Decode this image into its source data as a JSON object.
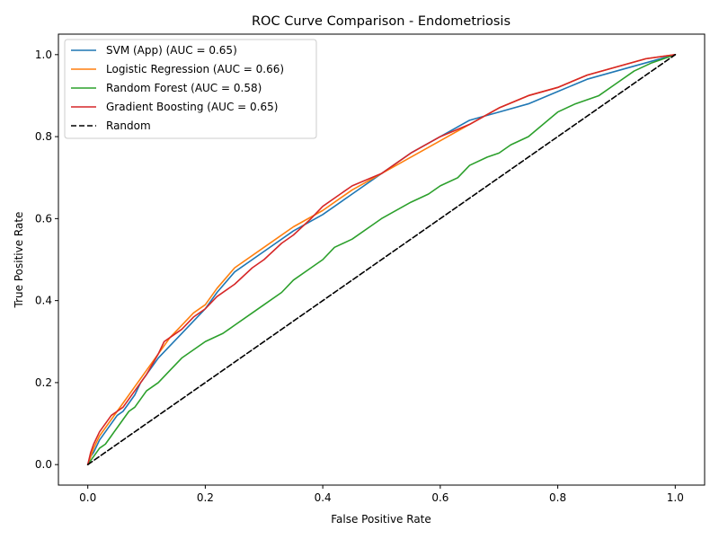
{
  "chart_data": {
    "type": "line",
    "title": "ROC Curve Comparison - Endometriosis",
    "xlabel": "False Positive Rate",
    "ylabel": "True Positive Rate",
    "xlim": [
      -0.05,
      1.05
    ],
    "ylim": [
      -0.05,
      1.05
    ],
    "xticks": [
      0.0,
      0.2,
      0.4,
      0.6,
      0.8,
      1.0
    ],
    "yticks": [
      0.0,
      0.2,
      0.4,
      0.6,
      0.8,
      1.0
    ],
    "xtick_labels": [
      "0.0",
      "0.2",
      "0.4",
      "0.6",
      "0.8",
      "1.0"
    ],
    "ytick_labels": [
      "0.0",
      "0.2",
      "0.4",
      "0.6",
      "0.8",
      "1.0"
    ],
    "grid": false,
    "legend_position": "upper-left",
    "series": [
      {
        "name": "SVM (App) (AUC = 0.65)",
        "color": "#1f77b4",
        "style": "solid",
        "x": [
          0.0,
          0.005,
          0.01,
          0.02,
          0.03,
          0.04,
          0.05,
          0.06,
          0.07,
          0.08,
          0.09,
          0.1,
          0.12,
          0.14,
          0.16,
          0.18,
          0.2,
          0.22,
          0.25,
          0.3,
          0.35,
          0.4,
          0.45,
          0.5,
          0.55,
          0.6,
          0.65,
          0.7,
          0.75,
          0.8,
          0.85,
          0.9,
          0.95,
          1.0
        ],
        "y": [
          0.0,
          0.02,
          0.03,
          0.06,
          0.08,
          0.1,
          0.12,
          0.13,
          0.15,
          0.17,
          0.2,
          0.22,
          0.26,
          0.29,
          0.32,
          0.35,
          0.38,
          0.42,
          0.47,
          0.52,
          0.57,
          0.61,
          0.66,
          0.71,
          0.76,
          0.8,
          0.84,
          0.86,
          0.88,
          0.91,
          0.94,
          0.96,
          0.98,
          1.0
        ]
      },
      {
        "name": "Logistic Regression (AUC = 0.66)",
        "color": "#ff7f0e",
        "style": "solid",
        "x": [
          0.0,
          0.005,
          0.01,
          0.02,
          0.03,
          0.04,
          0.05,
          0.06,
          0.07,
          0.08,
          0.09,
          0.1,
          0.12,
          0.14,
          0.16,
          0.18,
          0.2,
          0.22,
          0.25,
          0.3,
          0.35,
          0.4,
          0.45,
          0.5,
          0.55,
          0.6,
          0.65,
          0.7,
          0.75,
          0.8,
          0.85,
          0.9,
          0.95,
          1.0
        ],
        "y": [
          0.0,
          0.02,
          0.04,
          0.07,
          0.09,
          0.11,
          0.13,
          0.15,
          0.17,
          0.19,
          0.21,
          0.23,
          0.27,
          0.31,
          0.34,
          0.37,
          0.39,
          0.43,
          0.48,
          0.53,
          0.58,
          0.62,
          0.67,
          0.71,
          0.75,
          0.79,
          0.83,
          0.87,
          0.9,
          0.92,
          0.95,
          0.97,
          0.99,
          1.0
        ]
      },
      {
        "name": "Random Forest (AUC = 0.58)",
        "color": "#2ca02c",
        "style": "solid",
        "x": [
          0.0,
          0.01,
          0.02,
          0.03,
          0.04,
          0.05,
          0.06,
          0.07,
          0.08,
          0.09,
          0.1,
          0.12,
          0.14,
          0.16,
          0.18,
          0.2,
          0.23,
          0.25,
          0.28,
          0.3,
          0.33,
          0.35,
          0.38,
          0.4,
          0.42,
          0.45,
          0.48,
          0.5,
          0.55,
          0.58,
          0.6,
          0.63,
          0.65,
          0.68,
          0.7,
          0.72,
          0.75,
          0.8,
          0.83,
          0.87,
          0.9,
          0.93,
          0.96,
          1.0
        ],
        "y": [
          0.0,
          0.02,
          0.04,
          0.05,
          0.07,
          0.09,
          0.11,
          0.13,
          0.14,
          0.16,
          0.18,
          0.2,
          0.23,
          0.26,
          0.28,
          0.3,
          0.32,
          0.34,
          0.37,
          0.39,
          0.42,
          0.45,
          0.48,
          0.5,
          0.53,
          0.55,
          0.58,
          0.6,
          0.64,
          0.66,
          0.68,
          0.7,
          0.73,
          0.75,
          0.76,
          0.78,
          0.8,
          0.86,
          0.88,
          0.9,
          0.93,
          0.96,
          0.98,
          1.0
        ]
      },
      {
        "name": "Gradient Boosting (AUC = 0.65)",
        "color": "#d62728",
        "style": "solid",
        "x": [
          0.0,
          0.005,
          0.01,
          0.02,
          0.03,
          0.04,
          0.05,
          0.06,
          0.07,
          0.08,
          0.09,
          0.1,
          0.12,
          0.13,
          0.14,
          0.16,
          0.18,
          0.2,
          0.22,
          0.25,
          0.28,
          0.3,
          0.33,
          0.35,
          0.38,
          0.4,
          0.45,
          0.5,
          0.55,
          0.6,
          0.65,
          0.7,
          0.75,
          0.8,
          0.85,
          0.9,
          0.95,
          1.0
        ],
        "y": [
          0.0,
          0.03,
          0.05,
          0.08,
          0.1,
          0.12,
          0.13,
          0.14,
          0.16,
          0.18,
          0.2,
          0.22,
          0.27,
          0.3,
          0.31,
          0.33,
          0.36,
          0.38,
          0.41,
          0.44,
          0.48,
          0.5,
          0.54,
          0.56,
          0.6,
          0.63,
          0.68,
          0.71,
          0.76,
          0.8,
          0.83,
          0.87,
          0.9,
          0.92,
          0.95,
          0.97,
          0.99,
          1.0
        ]
      },
      {
        "name": "Random",
        "color": "#000000",
        "style": "dashed",
        "x": [
          0.0,
          1.0
        ],
        "y": [
          0.0,
          1.0
        ]
      }
    ]
  }
}
